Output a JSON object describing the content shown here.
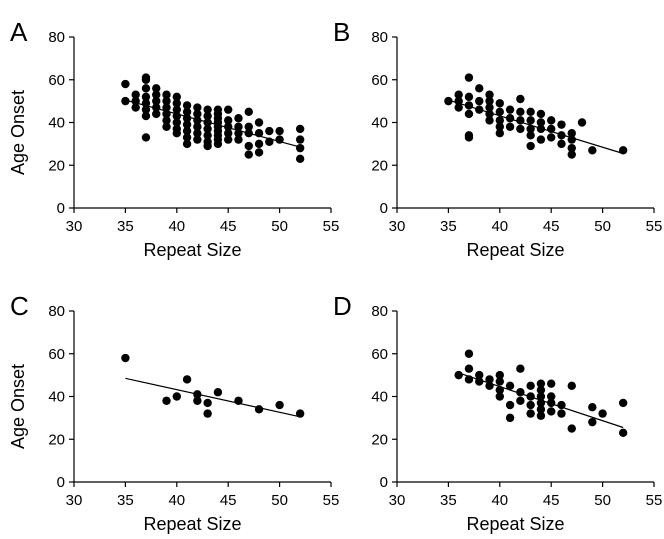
{
  "chart_data": [
    {
      "panel": "A",
      "type": "scatter",
      "xlabel": "Repeat Size",
      "ylabel": "Age Onset",
      "xlim": [
        30,
        55
      ],
      "ylim": [
        0,
        80
      ],
      "xticks": [
        30,
        35,
        40,
        45,
        50,
        55
      ],
      "yticks": [
        0,
        20,
        40,
        60,
        80
      ],
      "trend": {
        "x": [
          35,
          52
        ],
        "y": [
          50.5,
          28.5
        ]
      },
      "points": [
        [
          35,
          58
        ],
        [
          35,
          50
        ],
        [
          36,
          53
        ],
        [
          36,
          50
        ],
        [
          36,
          47
        ],
        [
          37,
          61
        ],
        [
          37,
          60
        ],
        [
          37,
          56
        ],
        [
          37,
          52
        ],
        [
          37,
          49
        ],
        [
          37,
          46
        ],
        [
          37,
          43
        ],
        [
          37,
          33
        ],
        [
          38,
          56
        ],
        [
          38,
          53
        ],
        [
          38,
          50
        ],
        [
          38,
          47
        ],
        [
          38,
          44
        ],
        [
          39,
          53
        ],
        [
          39,
          50
        ],
        [
          39,
          47
        ],
        [
          39,
          44
        ],
        [
          39,
          41
        ],
        [
          39,
          38
        ],
        [
          40,
          52
        ],
        [
          40,
          49
        ],
        [
          40,
          46
        ],
        [
          40,
          43
        ],
        [
          40,
          40
        ],
        [
          40,
          37
        ],
        [
          40,
          35
        ],
        [
          41,
          48
        ],
        [
          41,
          45
        ],
        [
          41,
          42
        ],
        [
          41,
          39
        ],
        [
          41,
          36
        ],
        [
          41,
          33
        ],
        [
          41,
          30
        ],
        [
          42,
          47
        ],
        [
          42,
          44
        ],
        [
          42,
          41
        ],
        [
          42,
          38
        ],
        [
          42,
          35
        ],
        [
          42,
          32
        ],
        [
          43,
          46
        ],
        [
          43,
          43
        ],
        [
          43,
          40
        ],
        [
          43,
          37
        ],
        [
          43,
          34
        ],
        [
          43,
          31
        ],
        [
          43,
          29
        ],
        [
          44,
          46
        ],
        [
          44,
          44
        ],
        [
          44,
          42
        ],
        [
          44,
          40
        ],
        [
          44,
          38
        ],
        [
          44,
          36
        ],
        [
          44,
          34
        ],
        [
          44,
          32
        ],
        [
          44,
          30
        ],
        [
          45,
          46
        ],
        [
          45,
          41
        ],
        [
          45,
          38
        ],
        [
          45,
          35
        ],
        [
          45,
          32
        ],
        [
          46,
          42
        ],
        [
          46,
          38
        ],
        [
          46,
          35
        ],
        [
          46,
          32
        ],
        [
          47,
          45
        ],
        [
          47,
          38
        ],
        [
          47,
          35
        ],
        [
          47,
          29
        ],
        [
          47,
          25
        ],
        [
          48,
          40
        ],
        [
          48,
          35
        ],
        [
          48,
          30
        ],
        [
          48,
          26
        ],
        [
          49,
          36
        ],
        [
          49,
          31
        ],
        [
          50,
          36
        ],
        [
          50,
          32
        ],
        [
          52,
          37
        ],
        [
          52,
          32
        ],
        [
          52,
          28
        ],
        [
          52,
          23
        ]
      ]
    },
    {
      "panel": "B",
      "type": "scatter",
      "xlabel": "Repeat Size",
      "ylabel": "",
      "xlim": [
        30,
        55
      ],
      "ylim": [
        0,
        80
      ],
      "xticks": [
        30,
        35,
        40,
        45,
        50,
        55
      ],
      "yticks": [
        0,
        20,
        40,
        60,
        80
      ],
      "trend": {
        "x": [
          35,
          52
        ],
        "y": [
          50.5,
          25.5
        ]
      },
      "points": [
        [
          35,
          50
        ],
        [
          36,
          53
        ],
        [
          36,
          50
        ],
        [
          36,
          47
        ],
        [
          37,
          61
        ],
        [
          37,
          52
        ],
        [
          37,
          48
        ],
        [
          37,
          44
        ],
        [
          37,
          34
        ],
        [
          37,
          33
        ],
        [
          38,
          56
        ],
        [
          38,
          50
        ],
        [
          38,
          46
        ],
        [
          39,
          53
        ],
        [
          39,
          50
        ],
        [
          39,
          47
        ],
        [
          39,
          44
        ],
        [
          39,
          41
        ],
        [
          40,
          49
        ],
        [
          40,
          45
        ],
        [
          40,
          41
        ],
        [
          40,
          38
        ],
        [
          40,
          35
        ],
        [
          41,
          46
        ],
        [
          41,
          42
        ],
        [
          41,
          38
        ],
        [
          42,
          51
        ],
        [
          42,
          45
        ],
        [
          42,
          41
        ],
        [
          42,
          37
        ],
        [
          43,
          45
        ],
        [
          43,
          41
        ],
        [
          43,
          37
        ],
        [
          43,
          34
        ],
        [
          43,
          29
        ],
        [
          44,
          44
        ],
        [
          44,
          40
        ],
        [
          44,
          37
        ],
        [
          44,
          32
        ],
        [
          45,
          41
        ],
        [
          45,
          37
        ],
        [
          45,
          33
        ],
        [
          46,
          39
        ],
        [
          46,
          34
        ],
        [
          46,
          30
        ],
        [
          47,
          35
        ],
        [
          47,
          32
        ],
        [
          47,
          28
        ],
        [
          47,
          25
        ],
        [
          48,
          40
        ],
        [
          49,
          27
        ],
        [
          52,
          27
        ]
      ]
    },
    {
      "panel": "C",
      "type": "scatter",
      "xlabel": "Repeat Size",
      "ylabel": "Age Onset",
      "xlim": [
        30,
        55
      ],
      "ylim": [
        0,
        80
      ],
      "xticks": [
        30,
        35,
        40,
        45,
        50,
        55
      ],
      "yticks": [
        0,
        20,
        40,
        60,
        80
      ],
      "trend": {
        "x": [
          35,
          52
        ],
        "y": [
          48.5,
          30.5
        ]
      },
      "points": [
        [
          35,
          58
        ],
        [
          39,
          38
        ],
        [
          40,
          40
        ],
        [
          41,
          48
        ],
        [
          42,
          41
        ],
        [
          42,
          38
        ],
        [
          43,
          37
        ],
        [
          43,
          32
        ],
        [
          44,
          42
        ],
        [
          46,
          38
        ],
        [
          48,
          34
        ],
        [
          50,
          36
        ],
        [
          52,
          32
        ]
      ]
    },
    {
      "panel": "D",
      "type": "scatter",
      "xlabel": "Repeat Size",
      "ylabel": "",
      "xlim": [
        30,
        55
      ],
      "ylim": [
        0,
        80
      ],
      "xticks": [
        30,
        35,
        40,
        45,
        50,
        55
      ],
      "yticks": [
        0,
        20,
        40,
        60,
        80
      ],
      "trend": {
        "x": [
          36,
          52
        ],
        "y": [
          51,
          25.5
        ]
      },
      "points": [
        [
          36,
          50
        ],
        [
          37,
          60
        ],
        [
          37,
          53
        ],
        [
          37,
          48
        ],
        [
          38,
          50
        ],
        [
          38,
          47
        ],
        [
          39,
          48
        ],
        [
          39,
          45
        ],
        [
          40,
          50
        ],
        [
          40,
          47
        ],
        [
          40,
          43
        ],
        [
          40,
          40
        ],
        [
          41,
          45
        ],
        [
          41,
          36
        ],
        [
          41,
          30
        ],
        [
          42,
          53
        ],
        [
          42,
          42
        ],
        [
          42,
          38
        ],
        [
          43,
          45
        ],
        [
          43,
          40
        ],
        [
          43,
          36
        ],
        [
          43,
          32
        ],
        [
          44,
          46
        ],
        [
          44,
          43
        ],
        [
          44,
          40
        ],
        [
          44,
          37
        ],
        [
          44,
          34
        ],
        [
          44,
          31
        ],
        [
          45,
          46
        ],
        [
          45,
          40
        ],
        [
          45,
          37
        ],
        [
          45,
          33
        ],
        [
          46,
          36
        ],
        [
          46,
          32
        ],
        [
          47,
          45
        ],
        [
          47,
          25
        ],
        [
          49,
          35
        ],
        [
          49,
          28
        ],
        [
          50,
          32
        ],
        [
          52,
          37
        ],
        [
          52,
          23
        ]
      ]
    }
  ]
}
